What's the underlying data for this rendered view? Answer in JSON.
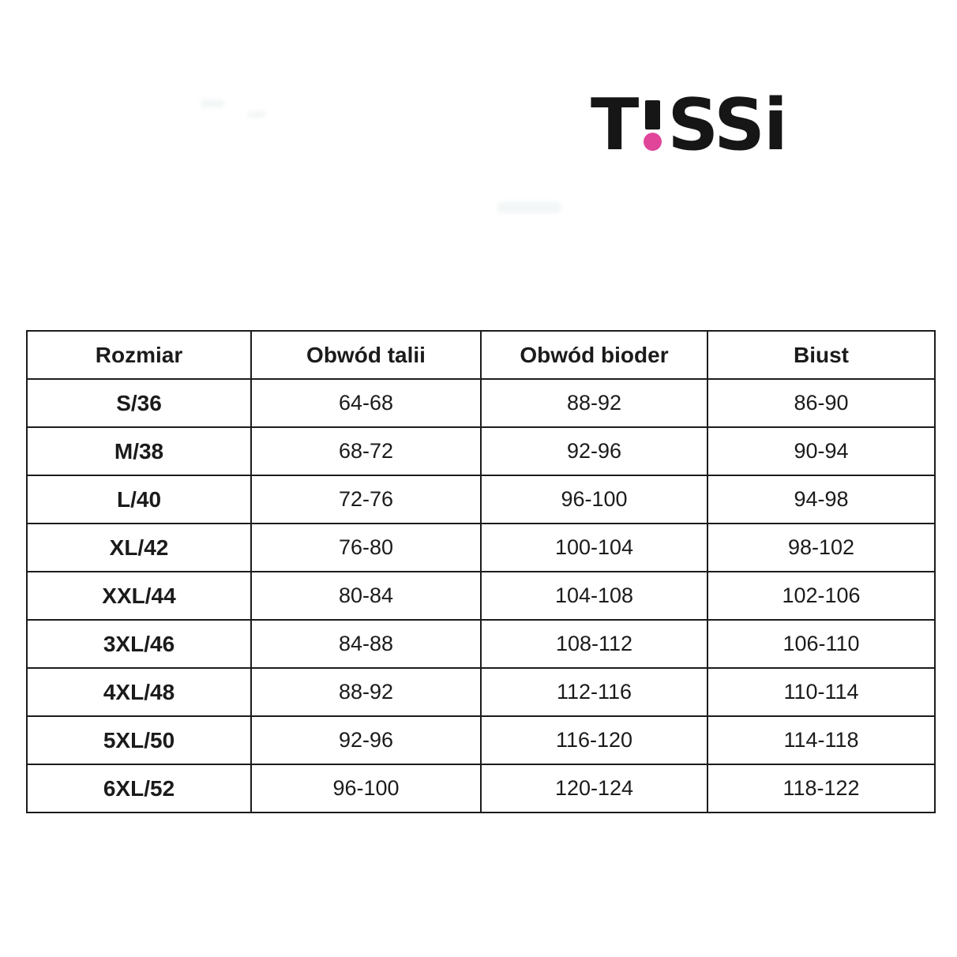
{
  "page": {
    "background": "#ffffff"
  },
  "logo": {
    "brand_text": "T!SSi",
    "part_t": "T",
    "exclamation": "!",
    "part_ss": "SS",
    "part_i": "i",
    "letter_color": "#161616",
    "dot_color": "#e0459a"
  },
  "size_chart": {
    "columns": [
      "Rozmiar",
      "Obwód talii",
      "Obwód bioder",
      "Biust"
    ],
    "rows": [
      [
        "S/36",
        "64-68",
        "88-92",
        "86-90"
      ],
      [
        "M/38",
        "68-72",
        "92-96",
        "90-94"
      ],
      [
        "L/40",
        "72-76",
        "96-100",
        "94-98"
      ],
      [
        "XL/42",
        "76-80",
        "100-104",
        "98-102"
      ],
      [
        "XXL/44",
        "80-84",
        "104-108",
        "102-106"
      ],
      [
        "3XL/46",
        "84-88",
        "108-112",
        "106-110"
      ],
      [
        "4XL/48",
        "88-92",
        "112-116",
        "110-114"
      ],
      [
        "5XL/50",
        "92-96",
        "116-120",
        "114-118"
      ],
      [
        "6XL/52",
        "96-100",
        "120-124",
        "118-122"
      ]
    ],
    "border_color": "#1c1c1c",
    "text_color": "#1b1b1b"
  }
}
